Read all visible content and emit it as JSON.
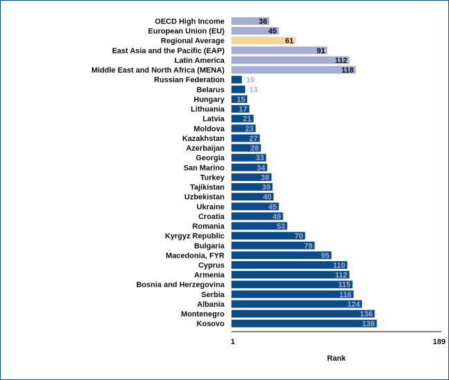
{
  "chart_data": {
    "type": "bar",
    "orientation": "horizontal",
    "title": "",
    "xlabel": "Rank",
    "ylabel": "",
    "xlim": [
      1,
      189
    ],
    "x_ticks": [
      "1",
      "189"
    ],
    "grid": false,
    "legend": "none",
    "colors": {
      "benchmark": "#a4add2",
      "regional_average": "#f7d594",
      "country": "#0b4c88",
      "label_dark": "#0a0a0a",
      "label_light": "#a4add2"
    },
    "categories": [
      "OECD High Income",
      "European Union (EU)",
      "Regional Average",
      "East Asia and the Pacific (EAP)",
      "Latin America",
      "Middle East and North Africa (MENA)",
      "Russian Federation",
      "Belarus",
      "Hungary",
      "Lithuania",
      "Latvia",
      "Moldova",
      "Kazakhstan",
      "Azerbaijan",
      "Georgia",
      "San Marino",
      "Turkey",
      "Tajikistan",
      "Uzbekistan",
      "Ukraine",
      "Croatia",
      "Romania",
      "Kyrgyz Republic",
      "Bulgaria",
      "Macedonia, FYR",
      "Cyprus",
      "Armenia",
      "Bosnia and Herzegovina",
      "Serbia",
      "Albania",
      "Montenegro",
      "Kosovo"
    ],
    "values": [
      36,
      45,
      61,
      91,
      112,
      118,
      10,
      13,
      15,
      17,
      21,
      23,
      27,
      28,
      33,
      34,
      38,
      39,
      40,
      45,
      49,
      53,
      70,
      79,
      95,
      110,
      112,
      115,
      116,
      124,
      136,
      138
    ],
    "bar_group": [
      "benchmark",
      "benchmark",
      "regional_average",
      "benchmark",
      "benchmark",
      "benchmark",
      "country",
      "country",
      "country",
      "country",
      "country",
      "country",
      "country",
      "country",
      "country",
      "country",
      "country",
      "country",
      "country",
      "country",
      "country",
      "country",
      "country",
      "country",
      "country",
      "country",
      "country",
      "country",
      "country",
      "country",
      "country",
      "country"
    ]
  }
}
